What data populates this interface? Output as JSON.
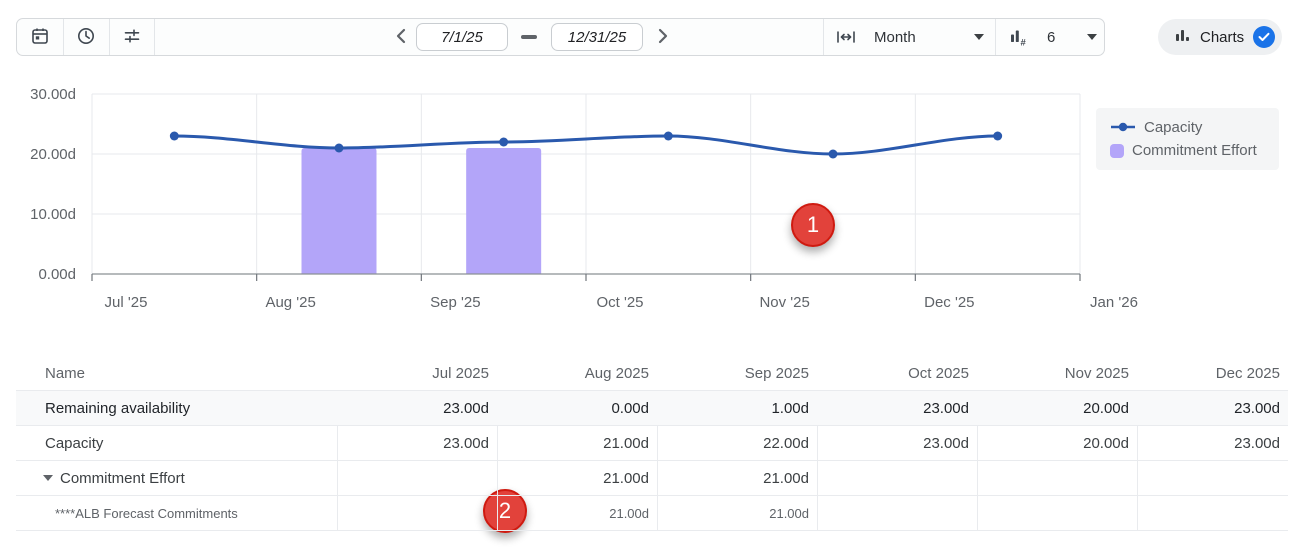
{
  "toolbar": {
    "date_from": "7/1/25",
    "date_to": "12/31/25",
    "interval_label": "Month",
    "bar_count": "6",
    "charts_toggle_label": "Charts"
  },
  "icons": {
    "calendar-icon": "calendar outline",
    "clock-icon": "clock outline",
    "sliders-icon": "filter sliders",
    "chevron-left-icon": "‹",
    "chevron-right-icon": "›",
    "caret-down-icon": "▼",
    "range-width-icon": "|↔|",
    "bar-count-icon": "bars-#",
    "bar-chart-icon": "ılı",
    "check-icon": "✓",
    "expand-triangle-icon": "▾"
  },
  "chart_data": {
    "type": "line",
    "categories": [
      "Jul '25",
      "Aug '25",
      "Sep '25",
      "Oct '25",
      "Nov '25",
      "Dec '25"
    ],
    "x_axis_labels": [
      "Jul '25",
      "Aug '25",
      "Sep '25",
      "Oct '25",
      "Nov '25",
      "Dec '25",
      "Jan '26"
    ],
    "series": [
      {
        "name": "Capacity",
        "type": "line",
        "color": "#2a59ad",
        "values": [
          23,
          21,
          22,
          23,
          20,
          23
        ]
      },
      {
        "name": "Commitment Effort",
        "type": "bar",
        "color": "#b3a5f9",
        "values": [
          null,
          21,
          21,
          null,
          null,
          null
        ]
      }
    ],
    "ylim": [
      0,
      30
    ],
    "y_ticks": [
      {
        "v": 0,
        "label": "0.00d"
      },
      {
        "v": 10,
        "label": "10.00d"
      },
      {
        "v": 20,
        "label": "20.00d"
      },
      {
        "v": 30,
        "label": "30.00d"
      }
    ],
    "unit": "d",
    "grid": true,
    "legend_position": "right"
  },
  "annotations": [
    {
      "label": "1"
    },
    {
      "label": "2"
    }
  ],
  "table": {
    "columns": [
      "Name",
      "Jul 2025",
      "Aug 2025",
      "Sep 2025",
      "Oct 2025",
      "Nov 2025",
      "Dec 2025"
    ],
    "rows": [
      {
        "name": "Remaining availability",
        "values": [
          "23.00d",
          "0.00d",
          "1.00d",
          "23.00d",
          "20.00d",
          "23.00d"
        ]
      },
      {
        "name": "Capacity",
        "values": [
          "23.00d",
          "21.00d",
          "22.00d",
          "23.00d",
          "20.00d",
          "23.00d"
        ]
      },
      {
        "name": "Commitment Effort",
        "values": [
          "",
          "21.00d",
          "21.00d",
          "",
          "",
          ""
        ]
      },
      {
        "name": "****ALB Forecast Commitments",
        "values": [
          "",
          "21.00d",
          "21.00d",
          "",
          "",
          ""
        ]
      }
    ]
  }
}
